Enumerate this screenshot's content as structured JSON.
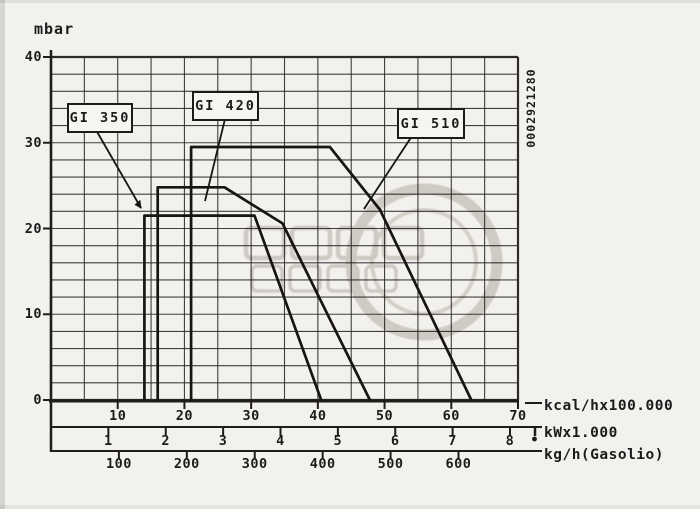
{
  "page": {
    "part_number": "0002921280"
  },
  "chart_data": {
    "type": "line",
    "description": "Burner operating ranges: combustion-chamber pressure (mbar) versus heat output",
    "ylabel": "mbar",
    "ylim": [
      0,
      40
    ],
    "xlim": [
      0,
      70
    ],
    "y_ticks": [
      40,
      30,
      20,
      10,
      0
    ],
    "grid": {
      "x_step": 5,
      "y_step": 2,
      "visible": true
    },
    "x_axes": [
      {
        "unit": "kcal/hx100.000",
        "ticks": [
          "10",
          "20",
          "30",
          "40",
          "50",
          "60",
          "70"
        ],
        "kcal_units_per_tick_unit": 1
      },
      {
        "unit": "kWx1.000",
        "ticks": [
          "1",
          "2",
          "3",
          "4",
          "5",
          "6",
          "7",
          "8"
        ],
        "kcal_units_per_tick_unit": 8.6
      },
      {
        "unit": "kg/h(Gasolio)",
        "ticks": [
          "100",
          "200",
          "300",
          "400",
          "500",
          "600"
        ],
        "kcal_units_per_tick_unit": 0.1018
      }
    ],
    "series": [
      {
        "name": "GI 350",
        "points": [
          [
            14,
            0
          ],
          [
            14,
            21.5
          ],
          [
            30.5,
            21.5
          ],
          [
            40.5,
            0
          ]
        ]
      },
      {
        "name": "GI 420",
        "points": [
          [
            16,
            0
          ],
          [
            16,
            24.8
          ],
          [
            26,
            24.8
          ],
          [
            34.7,
            20.6
          ],
          [
            47.8,
            0
          ]
        ]
      },
      {
        "name": "GI 510",
        "points": [
          [
            21,
            0
          ],
          [
            21,
            29.5
          ],
          [
            41.8,
            29.5
          ],
          [
            49.3,
            22.2
          ],
          [
            63,
            0
          ]
        ]
      }
    ],
    "legend_position": "callout-boxes"
  }
}
